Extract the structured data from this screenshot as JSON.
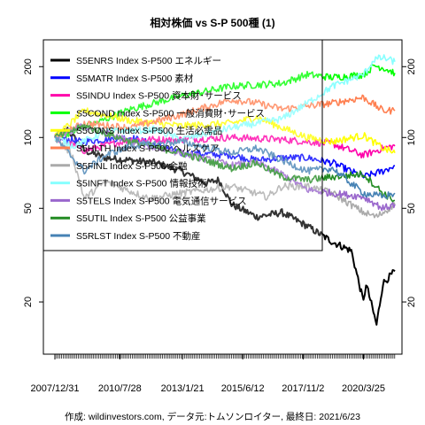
{
  "chart_data": {
    "type": "line",
    "title": "相対株価 vs S-P 500種 (1)",
    "caption": "作成: wildinvestors.com, データ元:トムソンロイター, 最終日: 2021/6/23",
    "y_scale": "log",
    "ylim": [
      12,
      260
    ],
    "y_ticks": [
      20,
      50,
      100,
      200
    ],
    "x_tick_labels": [
      "2007/12/31",
      "2010/7/28",
      "2013/1/21",
      "2015/6/12",
      "2017/11/2",
      "2020/3/25"
    ],
    "x_tick_dates": [
      "2007-12-31",
      "2010-07-28",
      "2013-01-21",
      "2015-06-12",
      "2017-11-02",
      "2020-03-25"
    ],
    "x_range": [
      "2007-12-31",
      "2021-06-23"
    ],
    "grid": false,
    "legend_position": "top-left",
    "series": [
      {
        "name": "S5ENRS Index S-P500 エネルギー",
        "color": "#000000",
        "x": [
          "2007-12-31",
          "2008-07-01",
          "2009-03-01",
          "2010-01-01",
          "2011-01-01",
          "2012-01-01",
          "2013-01-01",
          "2014-01-01",
          "2014-07-01",
          "2015-01-01",
          "2016-01-01",
          "2017-01-01",
          "2018-01-01",
          "2019-01-01",
          "2019-10-01",
          "2020-03-25",
          "2020-05-01",
          "2020-10-01",
          "2021-01-01",
          "2021-06-23"
        ],
        "values": [
          100,
          108,
          88,
          82,
          80,
          78,
          72,
          64,
          66,
          52,
          46,
          48,
          42,
          36,
          33,
          20,
          24,
          16,
          24,
          27
        ]
      },
      {
        "name": "S5MATR Index S-P500 素材",
        "color": "#0000ff",
        "x": [
          "2007-12-31",
          "2009-01-01",
          "2011-01-01",
          "2013-01-01",
          "2015-01-01",
          "2016-01-01",
          "2017-01-01",
          "2018-01-01",
          "2019-01-01",
          "2020-03-25",
          "2021-01-01",
          "2021-06-23"
        ],
        "values": [
          100,
          96,
          100,
          86,
          84,
          80,
          82,
          82,
          78,
          68,
          72,
          76
        ]
      },
      {
        "name": "S5INDU Index S-P500 資本財･サービス",
        "color": "#ff00aa",
        "x": [
          "2007-12-31",
          "2009-03-01",
          "2011-01-01",
          "2013-01-01",
          "2015-01-01",
          "2017-01-01",
          "2018-01-01",
          "2019-01-01",
          "2020-03-25",
          "2021-01-01",
          "2021-06-23"
        ],
        "values": [
          100,
          88,
          98,
          98,
          100,
          98,
          96,
          94,
          84,
          90,
          92
        ]
      },
      {
        "name": "S5COND Index S-P500 一般消費財･サービス",
        "color": "#00ff00",
        "x": [
          "2007-12-31",
          "2009-03-01",
          "2011-01-01",
          "2013-01-01",
          "2015-01-01",
          "2017-01-01",
          "2018-01-01",
          "2019-01-01",
          "2020-03-25",
          "2020-09-01",
          "2021-01-01",
          "2021-06-23"
        ],
        "values": [
          100,
          110,
          132,
          150,
          165,
          170,
          185,
          180,
          185,
          202,
          198,
          188
        ]
      },
      {
        "name": "S5CONS Index S-P500 生活必需品",
        "color": "#ffff00",
        "x": [
          "2007-12-31",
          "2009-03-01",
          "2011-01-01",
          "2013-01-01",
          "2015-01-01",
          "2016-01-01",
          "2017-01-01",
          "2018-01-01",
          "2019-01-01",
          "2020-03-25",
          "2021-01-01",
          "2021-06-23"
        ],
        "values": [
          100,
          130,
          118,
          112,
          115,
          122,
          110,
          100,
          96,
          102,
          90,
          86
        ]
      },
      {
        "name": "S5HLTH Index S-P500 ヘルスケア",
        "color": "#ff7f50",
        "x": [
          "2007-12-31",
          "2009-03-01",
          "2011-01-01",
          "2013-01-01",
          "2015-01-01",
          "2016-01-01",
          "2017-01-01",
          "2018-01-01",
          "2019-01-01",
          "2020-03-25",
          "2021-01-01",
          "2021-06-23"
        ],
        "values": [
          100,
          115,
          110,
          125,
          145,
          140,
          132,
          136,
          140,
          148,
          130,
          130
        ]
      },
      {
        "name": "S5FINL Index S-P500 金融",
        "color": "#aaaaaa",
        "x": [
          "2007-12-31",
          "2008-09-01",
          "2009-03-01",
          "2010-01-01",
          "2011-10-01",
          "2013-01-01",
          "2015-01-01",
          "2016-06-01",
          "2017-01-01",
          "2018-01-01",
          "2019-01-01",
          "2020-03-25",
          "2020-10-01",
          "2021-06-23"
        ],
        "values": [
          100,
          85,
          55,
          65,
          55,
          58,
          62,
          56,
          62,
          62,
          58,
          48,
          46,
          52
        ]
      },
      {
        "name": "S5INFT Index S-P500 情報技術",
        "color": "#88ffff",
        "x": [
          "2007-12-31",
          "2008-10-01",
          "2010-01-01",
          "2012-01-01",
          "2013-01-01",
          "2015-01-01",
          "2017-01-01",
          "2018-01-01",
          "2019-01-01",
          "2020-03-25",
          "2020-09-01",
          "2021-01-01",
          "2021-06-23"
        ],
        "values": [
          100,
          92,
          106,
          108,
          98,
          110,
          120,
          140,
          165,
          185,
          215,
          218,
          210
        ]
      },
      {
        "name": "S5TELS Index S-P500 電気通信サービス",
        "color": "#9966cc",
        "x": [
          "2007-12-31",
          "2009-03-01",
          "2011-01-01",
          "2013-01-01",
          "2015-01-01",
          "2016-01-01",
          "2017-01-01",
          "2018-01-01",
          "2019-01-01",
          "2020-03-25",
          "2021-01-01",
          "2021-06-23"
        ],
        "values": [
          100,
          112,
          96,
          86,
          76,
          78,
          70,
          60,
          58,
          56,
          50,
          52
        ]
      },
      {
        "name": "S5UTIL Index S-P500 公益事業",
        "color": "#228b22",
        "x": [
          "2007-12-31",
          "2009-03-01",
          "2011-01-01",
          "2013-01-01",
          "2015-01-01",
          "2016-01-01",
          "2017-01-01",
          "2018-01-01",
          "2019-01-01",
          "2020-03-25",
          "2021-01-01",
          "2021-06-23"
        ],
        "values": [
          100,
          112,
          96,
          86,
          74,
          78,
          68,
          66,
          68,
          70,
          58,
          54
        ]
      },
      {
        "name": "S5RLST Index S-P500 不動産",
        "color": "#4682b4",
        "x": [
          "2007-12-31",
          "2009-03-01",
          "2010-01-01",
          "2011-01-01",
          "2013-01-01",
          "2015-01-01",
          "2016-01-01",
          "2017-01-01",
          "2018-01-01",
          "2019-01-01",
          "2020-03-25",
          "2021-01-01",
          "2021-06-23"
        ],
        "values": [
          100,
          72,
          84,
          92,
          96,
          86,
          90,
          80,
          72,
          74,
          58,
          56,
          58
        ]
      }
    ]
  }
}
